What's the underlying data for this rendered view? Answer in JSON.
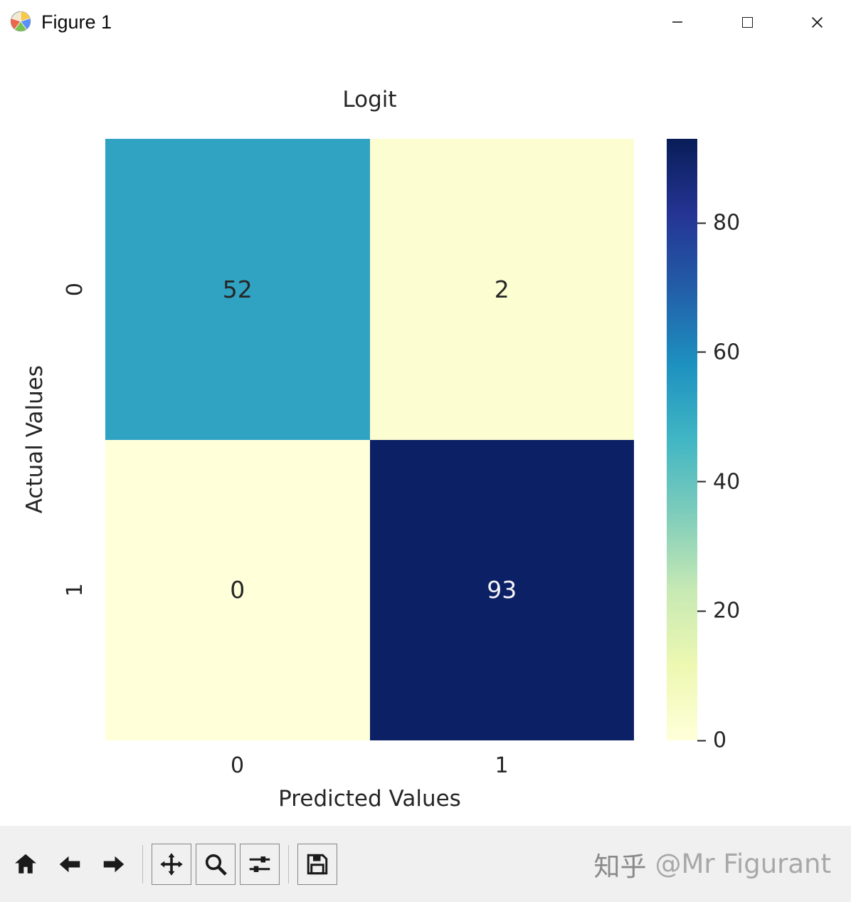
{
  "window": {
    "title": "Figure 1"
  },
  "chart_data": {
    "type": "heatmap",
    "title": "Logit",
    "xlabel": "Predicted Values",
    "ylabel": "Actual Values",
    "x_categories": [
      "0",
      "1"
    ],
    "y_categories": [
      "0",
      "1"
    ],
    "values": [
      [
        52,
        2
      ],
      [
        0,
        93
      ]
    ],
    "cell_colors": [
      [
        "#30a3c3",
        "#fcfdd0"
      ],
      [
        "#ffffd9",
        "#0c2066"
      ]
    ],
    "cell_text_colors": [
      [
        "#262626",
        "#262626"
      ],
      [
        "#262626",
        "#f5f5f5"
      ]
    ],
    "colormap": "YlGnBu",
    "colormap_stops": [
      "#ffffd9",
      "#edf8b1",
      "#c7e9b4",
      "#7fcdbb",
      "#41b6c4",
      "#1d91c0",
      "#225ea8",
      "#253494",
      "#081d58"
    ],
    "vmin": 0,
    "vmax": 93,
    "colorbar_ticks": [
      0,
      20,
      40,
      60,
      80
    ],
    "legend_position": "right-colorbar",
    "grid": false
  },
  "toolbar": {
    "buttons": [
      {
        "name": "home",
        "icon": "home-icon"
      },
      {
        "name": "back",
        "icon": "back-arrow-icon"
      },
      {
        "name": "forward",
        "icon": "forward-arrow-icon"
      },
      {
        "name": "pan",
        "icon": "pan-arrows-icon"
      },
      {
        "name": "zoom",
        "icon": "magnifier-icon"
      },
      {
        "name": "configure-subplots",
        "icon": "sliders-icon"
      },
      {
        "name": "save",
        "icon": "floppy-disk-icon"
      }
    ]
  },
  "watermark": {
    "brand": "知乎",
    "handle": "@Mr Figurant"
  }
}
